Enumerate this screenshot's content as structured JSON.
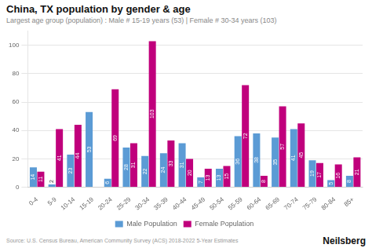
{
  "chart_data": {
    "type": "bar",
    "title": "China, TX population by gender & age",
    "subtitle": "Largest age group (population) : Male # 15-19 years (53) | Female # 30-34 years (103)",
    "annotations": [
      "Source: U.S. Census Bureau, American Community Survey (ACS) 2018-2022 5-Year Estimates",
      "Neilsberg"
    ],
    "categories": [
      "0-4",
      "5-9",
      "10-14",
      "15-19",
      "20-24",
      "25-29",
      "30-34",
      "35-39",
      "40-44",
      "45-49",
      "50-54",
      "55-59",
      "60-64",
      "65-69",
      "70-74",
      "75-79",
      "80-84",
      "85+"
    ],
    "series": [
      {
        "name": "Male Population",
        "color": "#5B9BD5",
        "values": [
          14,
          2,
          23,
          53,
          6,
          28,
          22,
          24,
          31,
          7,
          13,
          36,
          38,
          35,
          41,
          19,
          5,
          8
        ]
      },
      {
        "name": "Female Population",
        "color": "#C0007C",
        "values": [
          11,
          41,
          44,
          0,
          69,
          31,
          103,
          33,
          20,
          13,
          15,
          72,
          8,
          57,
          45,
          17,
          16,
          21
        ]
      }
    ],
    "ylim": [
      0,
      110
    ],
    "yticks": [
      0,
      20,
      40,
      60,
      80,
      100
    ],
    "grid": true,
    "legend": "bottom",
    "data_labels": true
  }
}
